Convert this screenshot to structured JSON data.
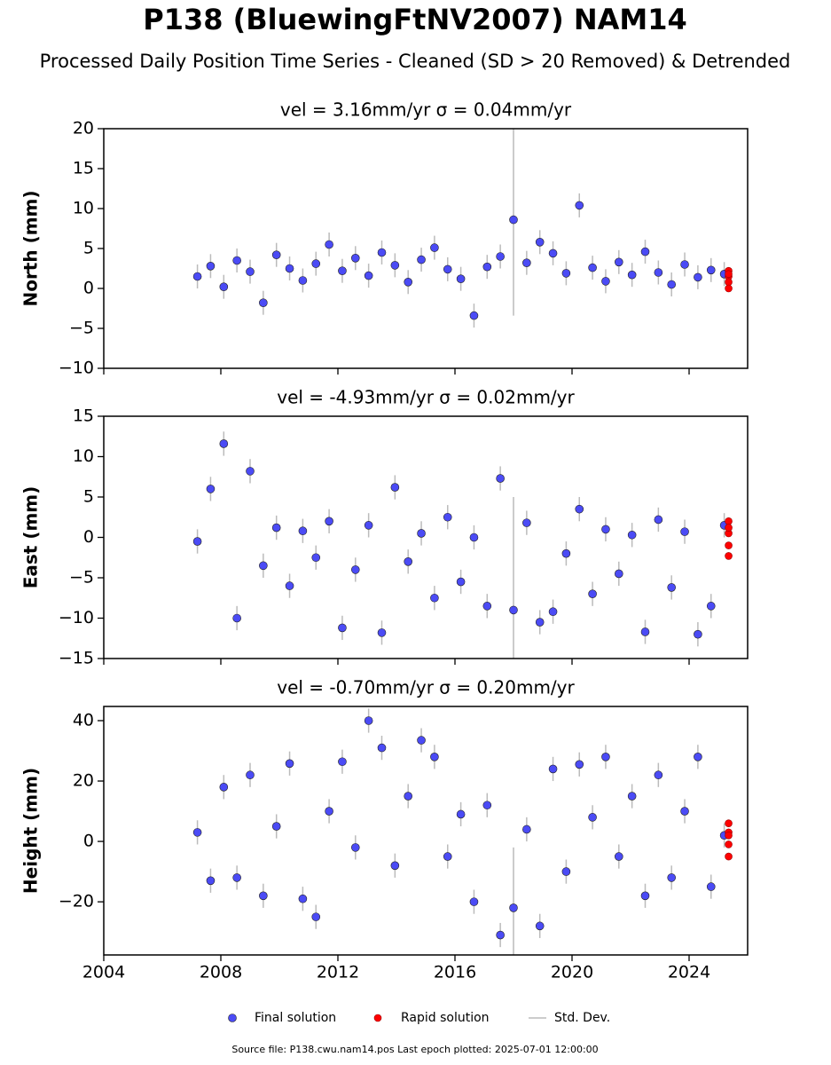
{
  "title": "P138 (BluewingFtNV2007) NAM14",
  "subtitle": "Processed Daily Position Time Series - Cleaned (SD > 20 Removed) & Detrended",
  "source": "Source file: P138.cwu.nam14.pos  Last epoch plotted: 2025-07-01 12:00:00",
  "chart_data": [
    {
      "type": "scatter",
      "title": "vel = 3.16mm/yr   σ = 0.04mm/yr",
      "y_label": "North (mm)",
      "xlim": [
        2004,
        2026
      ],
      "xticks": [
        2004,
        2008,
        2012,
        2016,
        2020,
        2024
      ],
      "ylim": [
        -10,
        20
      ],
      "yticks": [
        {
          "value": -10,
          "label": "−10"
        },
        {
          "value": -5,
          "label": "−5"
        },
        0,
        5,
        10,
        15,
        20
      ],
      "error_name": "Std. Dev.",
      "error_color": "#bbbbbb",
      "series": [
        {
          "name": "Final solution",
          "color": "#4b4bf5",
          "x": [
            2007.2,
            2007.65,
            2008.1,
            2008.55,
            2009.0,
            2009.45,
            2009.9,
            2010.35,
            2010.8,
            2011.25,
            2011.7,
            2012.15,
            2012.6,
            2013.05,
            2013.5,
            2013.95,
            2014.4,
            2014.85,
            2015.3,
            2015.75,
            2016.2,
            2016.65,
            2017.1,
            2017.55,
            2018.0,
            2018.45,
            2018.9,
            2019.35,
            2019.8,
            2020.25,
            2020.7,
            2021.15,
            2021.6,
            2022.05,
            2022.5,
            2022.95,
            2023.4,
            2023.85,
            2024.3,
            2024.75,
            2025.2
          ],
          "values": [
            1.5,
            2.8,
            0.2,
            3.5,
            2.1,
            -1.8,
            4.2,
            2.5,
            1.0,
            3.1,
            5.5,
            2.2,
            3.8,
            1.6,
            4.5,
            2.9,
            0.8,
            3.6,
            5.1,
            2.4,
            1.2,
            -3.4,
            2.7,
            4.0,
            8.6,
            3.2,
            5.8,
            4.4,
            1.9,
            10.4,
            2.6,
            0.9,
            3.3,
            1.7,
            4.6,
            2.0,
            0.5,
            3.0,
            1.4,
            2.3,
            1.8
          ],
          "errors": [
            1.5,
            1.5,
            1.5,
            1.5,
            1.5,
            1.5,
            1.5,
            1.5,
            1.5,
            1.5,
            1.5,
            1.5,
            1.5,
            1.5,
            1.5,
            1.5,
            1.5,
            1.5,
            1.5,
            1.5,
            1.5,
            1.5,
            1.5,
            1.5,
            12,
            1.5,
            1.5,
            1.5,
            1.5,
            1.5,
            1.5,
            1.5,
            1.5,
            1.5,
            1.5,
            1.5,
            1.5,
            1.5,
            1.5,
            1.5,
            1.5
          ]
        },
        {
          "name": "Rapid solution",
          "color": "#ff0000",
          "x": [
            2025.35,
            2025.35,
            2025.35,
            2025.35,
            2025.35
          ],
          "values": [
            2.2,
            1.5,
            0.8,
            0,
            1.8
          ]
        }
      ]
    },
    {
      "type": "scatter",
      "title": "vel = -4.93mm/yr   σ = 0.02mm/yr",
      "y_label": "East (mm)",
      "xlim": [
        2004,
        2026
      ],
      "xticks": [
        2004,
        2008,
        2012,
        2016,
        2020,
        2024
      ],
      "ylim": [
        -15,
        15
      ],
      "yticks": [
        {
          "value": -15,
          "label": "−15"
        },
        {
          "value": -10,
          "label": "−10"
        },
        {
          "value": -5,
          "label": "−5"
        },
        0,
        5,
        10,
        15
      ],
      "error_color": "#bbbbbb",
      "series": [
        {
          "name": "Final solution",
          "color": "#4b4bf5",
          "x": [
            2007.2,
            2007.65,
            2008.1,
            2008.55,
            2009.0,
            2009.45,
            2009.9,
            2010.35,
            2010.8,
            2011.25,
            2011.7,
            2012.15,
            2012.6,
            2013.05,
            2013.5,
            2013.95,
            2014.4,
            2014.85,
            2015.3,
            2015.75,
            2016.2,
            2016.65,
            2017.1,
            2017.55,
            2018.0,
            2018.45,
            2018.9,
            2019.35,
            2019.8,
            2020.25,
            2020.7,
            2021.15,
            2021.6,
            2022.05,
            2022.5,
            2022.95,
            2023.4,
            2023.85,
            2024.3,
            2024.75,
            2025.2
          ],
          "values": [
            -0.5,
            6.0,
            11.6,
            -10.0,
            8.2,
            -3.5,
            1.2,
            -6.0,
            0.8,
            -2.5,
            2.0,
            -11.2,
            -4.0,
            1.5,
            -11.8,
            6.2,
            -3.0,
            0.5,
            -7.5,
            2.5,
            -5.5,
            0.0,
            -8.5,
            7.3,
            -9.0,
            1.8,
            -10.5,
            -9.2,
            -2.0,
            3.5,
            -7.0,
            1.0,
            -4.5,
            0.3,
            -11.7,
            2.2,
            -6.2,
            0.7,
            -12.0,
            -8.5,
            1.5
          ],
          "errors": [
            1.5,
            1.5,
            1.5,
            1.5,
            1.5,
            1.5,
            1.5,
            1.5,
            1.5,
            1.5,
            1.5,
            1.5,
            1.5,
            1.5,
            1.5,
            1.5,
            1.5,
            1.5,
            1.5,
            1.5,
            1.5,
            1.5,
            1.5,
            1.5,
            14,
            1.5,
            1.5,
            1.5,
            1.5,
            1.5,
            1.5,
            1.5,
            1.5,
            1.5,
            1.5,
            1.5,
            1.5,
            1.5,
            1.5,
            1.5,
            1.5
          ]
        },
        {
          "name": "Rapid solution",
          "color": "#ff0000",
          "x": [
            2025.35,
            2025.35,
            2025.35,
            2025.35,
            2025.35
          ],
          "values": [
            2.0,
            0.5,
            -1.0,
            -2.3,
            1.2
          ]
        }
      ]
    },
    {
      "type": "scatter",
      "title": "vel = -0.70mm/yr   σ = 0.20mm/yr",
      "y_label": "Height (mm)",
      "xlim": [
        2004,
        2026
      ],
      "xticks": [
        2004,
        2008,
        2012,
        2016,
        2020,
        2024
      ],
      "ylim": [
        -37.6,
        44.7
      ],
      "yticks": [
        {
          "value": -20,
          "label": "−20"
        },
        0,
        20,
        40
      ],
      "error_color": "#bbbbbb",
      "series": [
        {
          "name": "Final solution",
          "color": "#4b4bf5",
          "x": [
            2007.2,
            2007.65,
            2008.1,
            2008.55,
            2009.0,
            2009.45,
            2009.9,
            2010.35,
            2010.8,
            2011.25,
            2011.7,
            2012.15,
            2012.6,
            2013.05,
            2013.5,
            2013.95,
            2014.4,
            2014.85,
            2015.3,
            2015.75,
            2016.2,
            2016.65,
            2017.1,
            2017.55,
            2018.0,
            2018.45,
            2018.9,
            2019.35,
            2019.8,
            2020.25,
            2020.7,
            2021.15,
            2021.6,
            2022.05,
            2022.5,
            2022.95,
            2023.4,
            2023.85,
            2024.3,
            2024.75,
            2025.2
          ],
          "values": [
            3.0,
            -13.0,
            18.0,
            -12.0,
            22.0,
            -18.0,
            5.0,
            25.8,
            -19.0,
            -25.0,
            10.0,
            26.4,
            -2.0,
            40.0,
            31.0,
            -8.0,
            15.0,
            33.5,
            28.0,
            -5.0,
            9.0,
            -20.0,
            12.0,
            -31.0,
            -22.0,
            4.0,
            -28.0,
            24.0,
            -10.0,
            25.5,
            8.0,
            28.0,
            -5.0,
            15.0,
            -18.0,
            22.0,
            -12.0,
            10.0,
            28.0,
            -15.0,
            2.0
          ],
          "errors": [
            4,
            4,
            4,
            4,
            4,
            4,
            4,
            4,
            4,
            4,
            4,
            4,
            4,
            4,
            4,
            4,
            4,
            4,
            4,
            4,
            4,
            4,
            4,
            4,
            20,
            4,
            4,
            4,
            4,
            4,
            4,
            4,
            4,
            4,
            4,
            4,
            4,
            4,
            4,
            4,
            4
          ]
        },
        {
          "name": "Rapid solution",
          "color": "#ff0000",
          "x": [
            2025.35,
            2025.35,
            2025.35,
            2025.35,
            2025.35
          ],
          "values": [
            6,
            3,
            -1,
            -5,
            2
          ]
        }
      ]
    }
  ]
}
